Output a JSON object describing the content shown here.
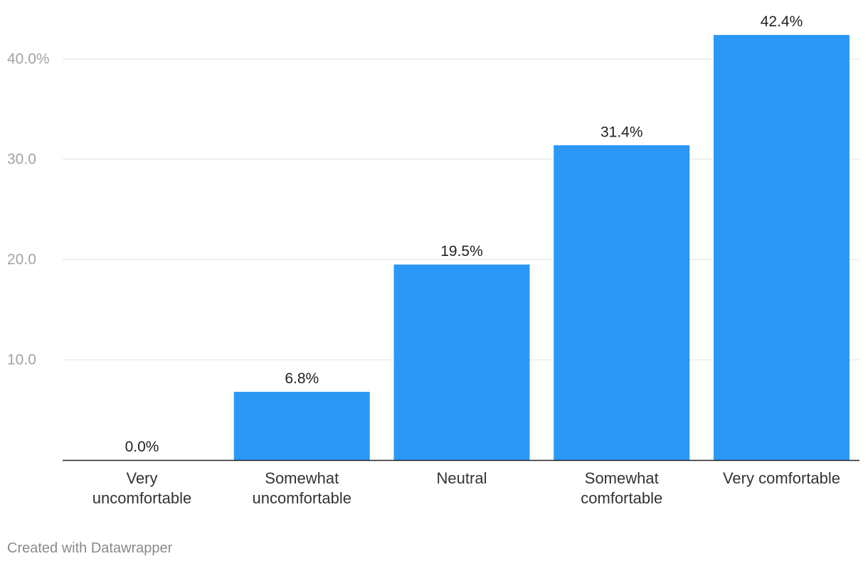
{
  "chart_data": {
    "type": "bar",
    "title": "",
    "xlabel": "",
    "ylabel": "",
    "categories": [
      [
        "Very",
        "uncomfortable"
      ],
      [
        "Somewhat",
        "uncomfortable"
      ],
      [
        "Neutral"
      ],
      [
        "Somewhat",
        "comfortable"
      ],
      [
        "Very comfortable"
      ]
    ],
    "values": [
      0.0,
      6.8,
      19.5,
      31.4,
      42.4
    ],
    "value_labels": [
      "0.0%",
      "6.8%",
      "19.5%",
      "31.4%",
      "42.4%"
    ],
    "ylim": [
      0,
      45
    ],
    "yticks": [
      10,
      20,
      30,
      40
    ],
    "ytick_labels": [
      "10.0",
      "20.0",
      "30.0",
      "40.0%"
    ],
    "grid": true,
    "legend": "none",
    "bar_color": "#2b98f5"
  },
  "footer": {
    "credit": "Created with Datawrapper"
  }
}
